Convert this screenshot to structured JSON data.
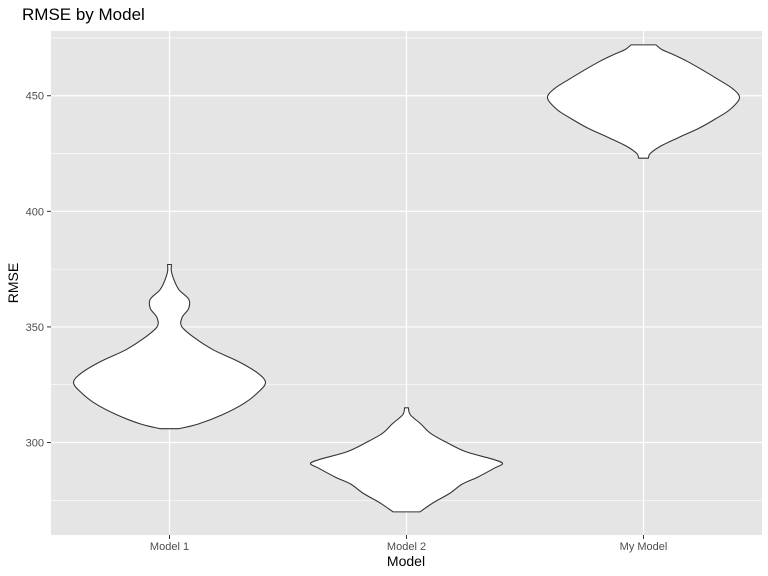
{
  "chart_data": {
    "type": "violin",
    "title": "RMSE by Model",
    "xlabel": "Model",
    "ylabel": "RMSE",
    "categories": [
      "Model 1",
      "Model 2",
      "My Model"
    ],
    "ylim": [
      260,
      478
    ],
    "yticks": [
      300,
      350,
      400,
      450
    ],
    "grid": true,
    "panel_color": "#e5e5e5",
    "grid_color": "#ffffff",
    "outline_color": "#333333",
    "fill_color": "#ffffff",
    "series": [
      {
        "category": "Model 1",
        "min": 306,
        "max": 377,
        "profile": [
          [
            306,
            0.1
          ],
          [
            308,
            0.3
          ],
          [
            312,
            0.55
          ],
          [
            317,
            0.78
          ],
          [
            322,
            0.93
          ],
          [
            326,
            1.0
          ],
          [
            330,
            0.92
          ],
          [
            335,
            0.72
          ],
          [
            340,
            0.46
          ],
          [
            345,
            0.27
          ],
          [
            350,
            0.13
          ],
          [
            354,
            0.13
          ],
          [
            358,
            0.2
          ],
          [
            362,
            0.2
          ],
          [
            366,
            0.1
          ],
          [
            370,
            0.05
          ],
          [
            374,
            0.02
          ],
          [
            377,
            0.02
          ]
        ]
      },
      {
        "category": "Model 2",
        "min": 270,
        "max": 315,
        "profile": [
          [
            270,
            0.14
          ],
          [
            274,
            0.28
          ],
          [
            278,
            0.45
          ],
          [
            282,
            0.58
          ],
          [
            285,
            0.74
          ],
          [
            289,
            0.92
          ],
          [
            291,
            1.0
          ],
          [
            293,
            0.88
          ],
          [
            296,
            0.62
          ],
          [
            300,
            0.42
          ],
          [
            304,
            0.25
          ],
          [
            308,
            0.15
          ],
          [
            312,
            0.04
          ],
          [
            315,
            0.02
          ]
        ]
      },
      {
        "category": "My Model",
        "min": 423,
        "max": 472,
        "profile": [
          [
            423,
            0.05
          ],
          [
            425,
            0.07
          ],
          [
            428,
            0.17
          ],
          [
            432,
            0.37
          ],
          [
            436,
            0.58
          ],
          [
            440,
            0.75
          ],
          [
            444,
            0.9
          ],
          [
            449,
            1.0
          ],
          [
            453,
            0.93
          ],
          [
            457,
            0.78
          ],
          [
            461,
            0.62
          ],
          [
            465,
            0.45
          ],
          [
            468,
            0.3
          ],
          [
            470,
            0.19
          ],
          [
            472,
            0.13
          ]
        ]
      }
    ]
  }
}
